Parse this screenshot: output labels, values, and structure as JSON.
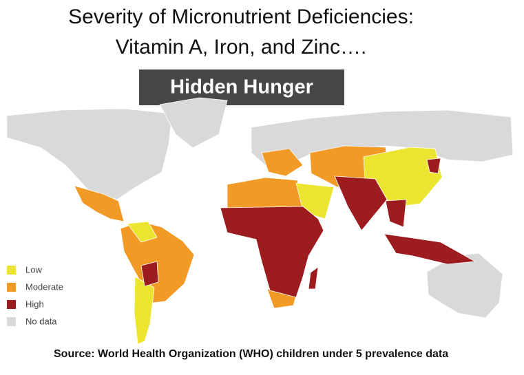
{
  "title": [
    "Severity of Micronutrient Deficiencies:",
    "Vitamin A, Iron, and Zinc…."
  ],
  "banner": "Hidden Hunger",
  "legend": [
    {
      "label": "Low",
      "color": "#ece530"
    },
    {
      "label": "Moderate",
      "color": "#f29a26"
    },
    {
      "label": "High",
      "color": "#9c1c1f"
    },
    {
      "label": "No data",
      "color": "#d9d9d9"
    }
  ],
  "source": "Source: World Health Organization (WHO) children under 5 prevalence data"
}
